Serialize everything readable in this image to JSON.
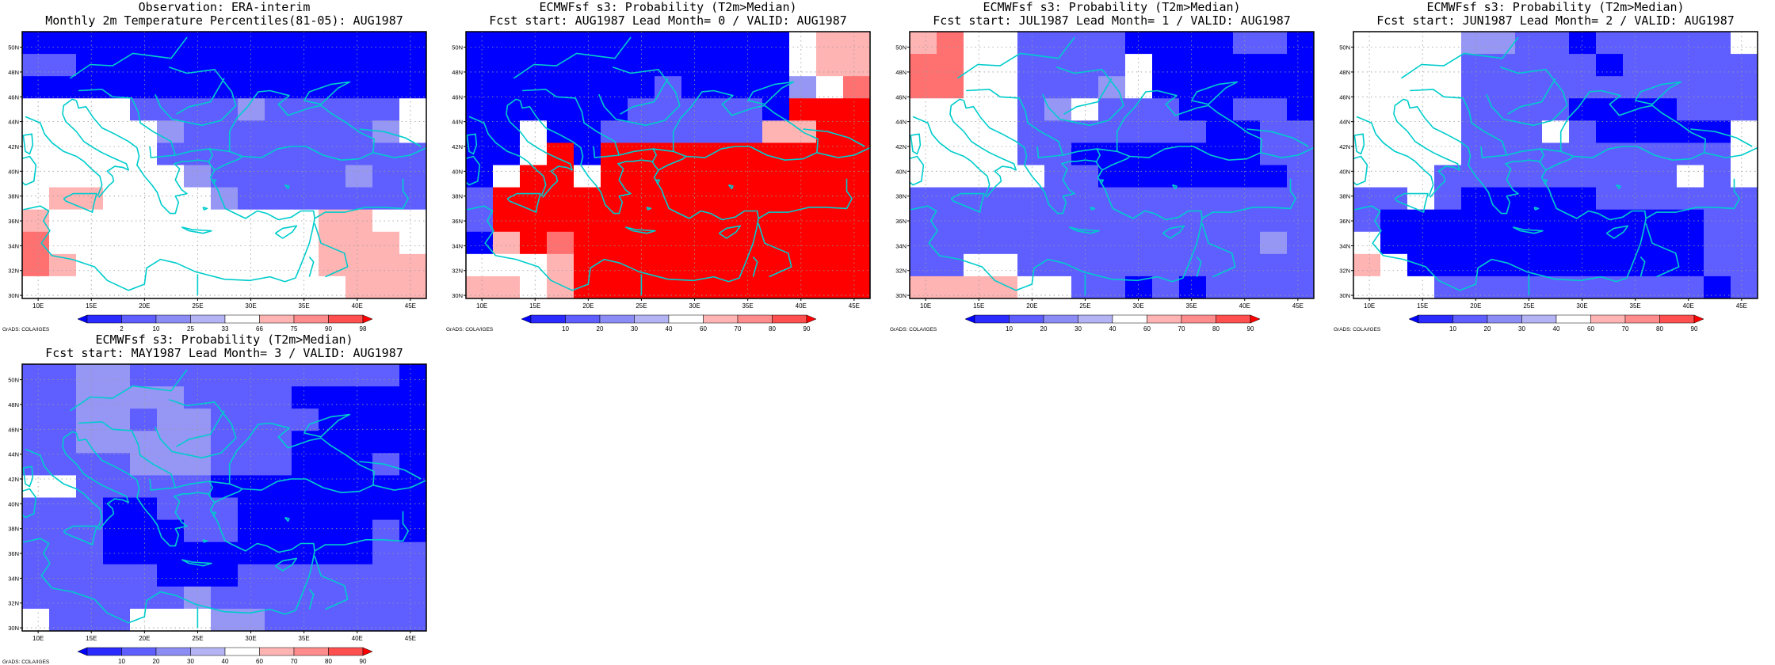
{
  "panels": [
    {
      "title_line1": "Observation: ERA-interim",
      "title_line2": "Monthly 2m Temperature Percentiles(81-05): AUG1987",
      "colorbar": {
        "labels": [
          "2",
          "10",
          "25",
          "33",
          "66",
          "75",
          "90",
          "98"
        ],
        "colors": [
          "#0000ff",
          "#2b2bff",
          "#5f5fff",
          "#8c8cf5",
          "#b4b4f5",
          "#ffffff",
          "#ffb4b4",
          "#ff8c8c",
          "#ff5050",
          "#ff0000"
        ]
      },
      "grid": [
        "BBBBBBBBBBBBBBB",
        "CCBBBBBBBBBBBBB",
        "BBBBBBBBBBBBBBB",
        "WWWWCCCCDCCCCCW",
        "WWWWWDCCCCCCCDW",
        "WWWWWCCCCCCCCCC",
        "WWWWWWDCCCCCDCC",
        "WPPWWWWDCCCCCCC",
        "PWWWWWWWWWWPPWW",
        "QWWWWWWWWWWPPPW",
        "QPWWWWWWWWWPPPP",
        "WWWWWWWWWWWWPPP"
      ]
    },
    {
      "title_line1": "ECMWFsf s3: Probability (T2m>Median)",
      "title_line2": "Fcst start: AUG1987  Lead Month= 0 / VALID: AUG1987",
      "colorbar": {
        "labels": [
          "10",
          "20",
          "30",
          "40",
          "60",
          "70",
          "80",
          "90"
        ],
        "colors": [
          "#0000ff",
          "#2b2bff",
          "#5f5fff",
          "#8c8cf5",
          "#b4b4f5",
          "#ffffff",
          "#ffb4b4",
          "#ff8c8c",
          "#ff5050",
          "#ff0000"
        ]
      },
      "grid": [
        "BBBBBBBBBBBBWPP",
        "BBBBBBBBBBBBWPP",
        "BBBBBBBCBBBBDWQ",
        "BBBBBBCCCCCBRRR",
        "BBWBBCCCCCCPPRR",
        "BBWRBRRRRRRRRRR",
        "BWRRWRRRRRRRRRR",
        "CRRRRRRRRRRRRRR",
        "CRRRRRRRRRRRRRR",
        "BPRQRRRRRRRRRRR",
        "WWWPRRRRRRRRRRR",
        "PPWPRRRRRRRRRRR"
      ]
    },
    {
      "title_line1": "ECMWFsf s3: Probability (T2m>Median)",
      "title_line2": "Fcst start: JUL1987  Lead Month= 1 / VALID: AUG1987",
      "colorbar": {
        "labels": [
          "10",
          "20",
          "30",
          "40",
          "60",
          "70",
          "80",
          "90"
        ],
        "colors": [
          "#0000ff",
          "#2b2bff",
          "#5f5fff",
          "#8c8cf5",
          "#b4b4f5",
          "#ffffff",
          "#ffb4b4",
          "#ff8c8c",
          "#ff5050",
          "#ff0000"
        ]
      },
      "grid": [
        "PQWWCCCCBBBBCCB",
        "QQWWCCCCWBBBBBB",
        "QQWWCCCDWBBBBBB",
        "WWWWCDWCCCBBCCB",
        "WWWWCCCCCCCBBCC",
        "WWWWCCBBBBBBBCC",
        "WWWWWCCBBBBBBBC",
        "CCCCCCCCCCCCCCC",
        "CCCCCCCCCCCCCCC",
        "CCCCCCCCCCCCCDC",
        "CCWWCCCCCCCCCCC",
        "PPPPWWCCBCBCCCC"
      ]
    },
    {
      "title_line1": "ECMWFsf s3: Probability (T2m>Median)",
      "title_line2": "Fcst start: JUN1987  Lead Month= 2 / VALID: AUG1987",
      "colorbar": {
        "labels": [
          "10",
          "20",
          "30",
          "40",
          "60",
          "70",
          "80",
          "90"
        ],
        "colors": [
          "#0000ff",
          "#2b2bff",
          "#5f5fff",
          "#8c8cf5",
          "#b4b4f5",
          "#ffffff",
          "#ffb4b4",
          "#ff8c8c",
          "#ff5050",
          "#ff0000"
        ]
      },
      "grid": [
        "WWWWDDCCBCCCCCW",
        "WWWWCCCCCBCCCCC",
        "WWWWCCCCCCCCCCC",
        "WWWWCCCCBBBBCCC",
        "WWWWCCCWCBBBBBW",
        "WWWWCCCCCCCCCCW",
        "WWWCCCCCCCCCWCW",
        "CCWCBBBBBCCCCCC",
        "CBBBBBBBBBBBBCC",
        "WBBBBBBBBBBBBCC",
        "PWBBBBBBBBBBBCC",
        "WWWCCCCCCCCCCBC"
      ]
    },
    {
      "title_line1": "ECMWFsf s3: Probability (T2m>Median)",
      "title_line2": "Fcst start: MAY1987  Lead Month= 3 / VALID: AUG1987",
      "colorbar": {
        "labels": [
          "10",
          "20",
          "30",
          "40",
          "60",
          "70",
          "80",
          "90"
        ],
        "colors": [
          "#0000ff",
          "#2b2bff",
          "#5f5fff",
          "#8c8cf5",
          "#b4b4f5",
          "#ffffff",
          "#ffb4b4",
          "#ff8c8c",
          "#ff5050",
          "#ff0000"
        ]
      },
      "grid": [
        "CCDDCCCCCCCCCCB",
        "CCDDDDCCCCBBBBB",
        "CCDDCDDCCCCBBBB",
        "CCDDDDDCCCBBBBB",
        "CCCCDDDCCCBBBCB",
        "WWCCCCCBBBBBBBB",
        "CCCBBCCCBBBBBBB",
        "CCCBBBCCBBBBBCB",
        "CCCBBBBBBBBBBCC",
        "CCCCCBBBCCCCCCC",
        "CCCCCCDCCCCCCCC",
        "WCCCWWWDDCCCCCC"
      ]
    }
  ],
  "map": {
    "lon_labels": [
      "10E",
      "15E",
      "20E",
      "25E",
      "30E",
      "35E",
      "40E",
      "45E"
    ],
    "lat_labels": [
      "30N",
      "32N",
      "34N",
      "36N",
      "38N",
      "40N",
      "42N",
      "44N",
      "46N",
      "48N",
      "50N"
    ],
    "coast_color": "#00cccc",
    "grid_line_color": "#9a9a9a",
    "cell_colors": {
      "B": "#0000ff",
      "C": "#5f5fff",
      "D": "#9696f5",
      "W": "#ffffff",
      "P": "#ffb4b4",
      "Q": "#ff7070",
      "R": "#ff0000"
    }
  },
  "credit": "GrADS: COLA/IGES"
}
